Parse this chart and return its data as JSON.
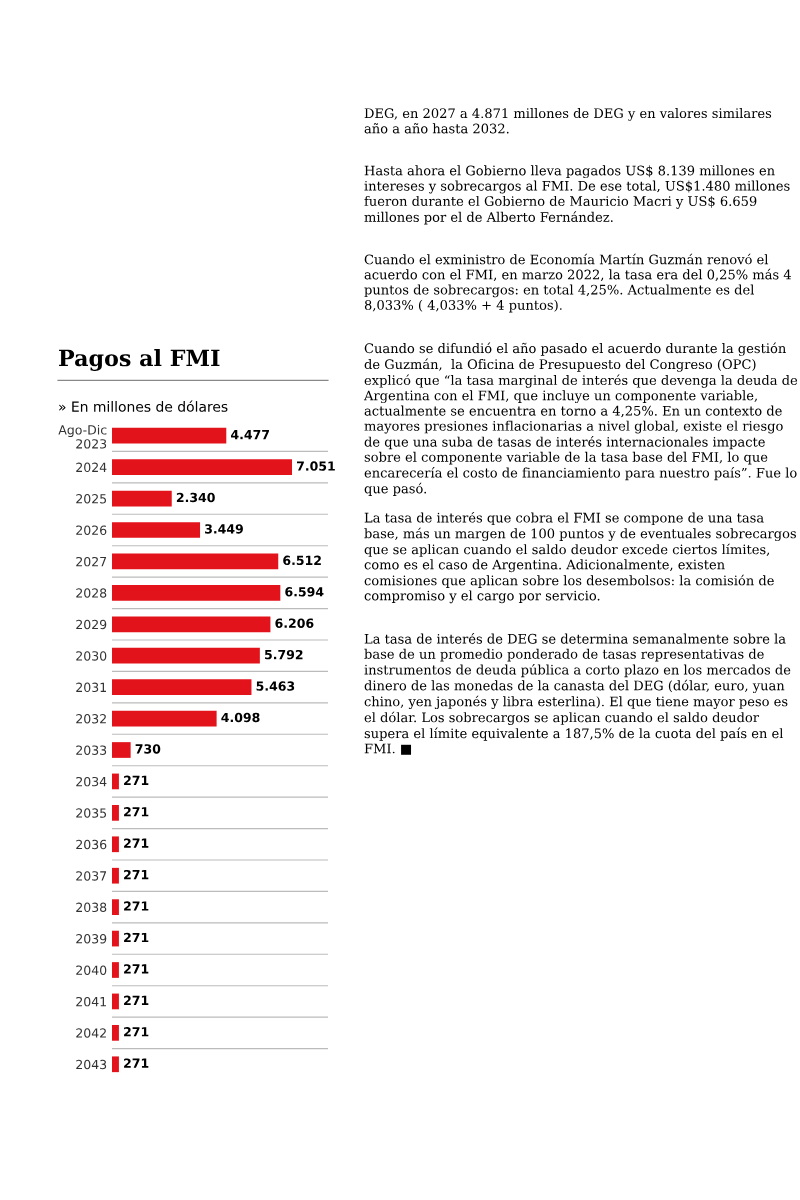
{
  "chart_data": {
    "type": "bar",
    "orientation": "horizontal",
    "title": "Pagos al FMI",
    "subtitle": "» En millones de dólares",
    "categories": [
      "Ago-Dic\n2023",
      "2024",
      "2025",
      "2026",
      "2027",
      "2028",
      "2029",
      "2030",
      "2031",
      "2032",
      "2033",
      "2034",
      "2035",
      "2036",
      "2037",
      "2038",
      "2039",
      "2040",
      "2041",
      "2042",
      "2043"
    ],
    "values": [
      4477,
      7051,
      2340,
      3449,
      6512,
      6594,
      6206,
      5792,
      5463,
      4098,
      730,
      271,
      271,
      271,
      271,
      271,
      271,
      271,
      271,
      271,
      271
    ],
    "value_labels": [
      "4.477",
      "7.051",
      "2.340",
      "3.449",
      "6.512",
      "6.594",
      "6.206",
      "5.792",
      "5.463",
      "4.098",
      "730",
      "271",
      "271",
      "271",
      "271",
      "271",
      "271",
      "271",
      "271",
      "271",
      "271"
    ],
    "color": "#e3131b",
    "grid": false,
    "legend": false,
    "annotations": [
      "DEG, en 2027 a 4.871 millones de DEG y en valores similares año a año hasta 2032.",
      "Hasta ahora el Gobierno lleva pagados US$ 8.139 millones en intereses y sobrecargos al FMI. De ese total, US$1.480 millones fueron durante el Gobierno de Mauricio Macri y US$ 6.659 millones por el de Alberto Fernández.",
      "Cuando el exministro de Economía Martín Guzmán renovó el acuerdo con el FMI, en marzo 2022, la tasa era del 0,25% más 4 puntos de sobrecargos: en total 4,25%. Actualmente es del 8,033% ( 4,033% + 4 puntos).",
      "Cuando se difundió el año pasado el acuerdo durante la gestión de Guzmán,  la Oficina de Presupuesto del Congreso (OPC) explicó que “la tasa marginal de interés que devenga la deuda de Argentina con el FMI, que incluye un componente variable, actualmente se encuentra en torno a 4,25%. En un contexto de mayores presiones inflacionarias a nivel global, existe el riesgo de que una suba de tasas de interés internacionales impacte sobre el componente variable de la tasa base del FMI, lo que encarecería el costo de financiamiento para nuestro país”. Fue lo que pasó.",
      "La tasa de interés que cobra el FMI se compone de una tasa base, más un margen de 100 puntos y de eventuales sobrecargos que se aplican cuando el saldo deudor excede ciertos límites, como es el caso de Argentina. Adicionalmente, existen comisiones que aplican sobre los desembolsos: la comisión de compromiso y el cargo por servicio.",
      "La tasa de interés de DEG se determina semanalmente sobre la base de un promedio ponderado de tasas representativas de instrumentos de deuda pública a corto plazo en los mercados de dinero de las monedas de la canasta del DEG (dólar, euro, yuan chino, yen japonés y libra esterlina). El que tiene mayor peso es el dólar. Los sobrecargos se aplican cuando el saldo deudor supera el límite equivalente a 187,5% de la cuota del país en el FMI. ■"
    ]
  }
}
